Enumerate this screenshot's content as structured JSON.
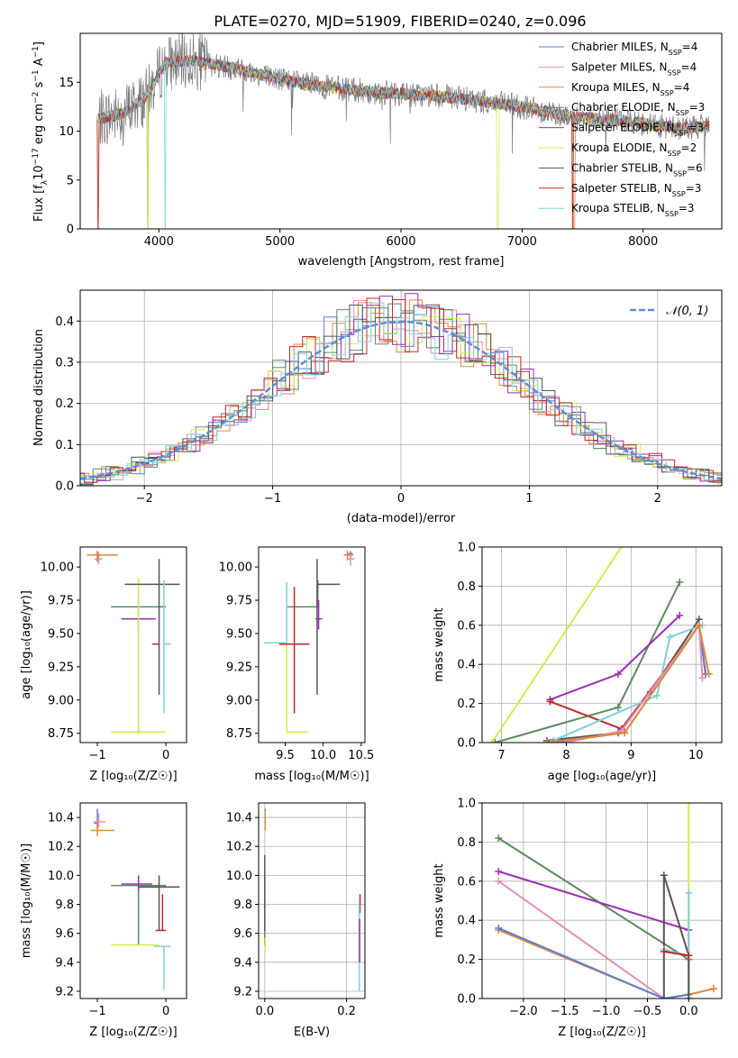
{
  "colors": {
    "Chabrier MILES": "#5b7fd1",
    "Salpeter MILES": "#e58fb8",
    "Kroupa MILES": "#e0893a",
    "Chabrier ELODIE": "#5c8a5e",
    "Salpeter ELODIE": "#9b2fb0",
    "Kroupa ELODIE": "#d4ec4c",
    "Chabrier STELIB": "#555555",
    "Salpeter STELIB": "#c0282b",
    "Kroupa STELIB": "#7fd0d8"
  },
  "chart_data": [
    {
      "type": "line",
      "title": "PLATE=0270, MJD=51909, FIBERID=0240, z=0.096",
      "xlabel": "wavelength [Angstrom, rest frame]",
      "ylabel": "Flux [fλ10⁻¹⁷ erg cm⁻² s⁻¹ A⁻¹]",
      "xlim": [
        3350,
        8650
      ],
      "ylim": [
        0,
        20
      ],
      "xticks": [
        4000,
        5000,
        6000,
        7000,
        8000
      ],
      "yticks": [
        0,
        5,
        10,
        15
      ],
      "legend_placement": "top-right",
      "spectrum_anchors": [
        [
          3500,
          11.2
        ],
        [
          3700,
          11.8
        ],
        [
          3900,
          13.5
        ],
        [
          4050,
          17.0
        ],
        [
          4300,
          17.2
        ],
        [
          4600,
          16.5
        ],
        [
          4860,
          15.7
        ],
        [
          5200,
          14.8
        ],
        [
          5600,
          14.2
        ],
        [
          6000,
          13.8
        ],
        [
          6300,
          13.6
        ],
        [
          6700,
          13.0
        ],
        [
          7000,
          12.5
        ],
        [
          7400,
          11.5
        ],
        [
          7700,
          11.2
        ],
        [
          8000,
          10.8
        ],
        [
          8300,
          10.3
        ],
        [
          8550,
          10.5
        ]
      ],
      "series": [
        {
          "name": "Chabrier MILES, N_SSP=4",
          "legend": "Chabrier MILES, N",
          "nssp": 4
        },
        {
          "name": "Salpeter MILES, N_SSP=4",
          "legend": "Salpeter MILES, N",
          "nssp": 4
        },
        {
          "name": "Kroupa MILES, N_SSP=4",
          "legend": "Kroupa MILES, N",
          "nssp": 4
        },
        {
          "name": "Chabrier ELODIE, N_SSP=3",
          "legend": "Chabrier ELODIE, N",
          "nssp": 3
        },
        {
          "name": "Salpeter ELODIE, N_SSP=3",
          "legend": "Salpeter ELODIE, N",
          "nssp": 3
        },
        {
          "name": "Kroupa ELODIE, N_SSP=2",
          "legend": "Kroupa ELODIE, N",
          "nssp": 2
        },
        {
          "name": "Chabrier STELIB, N_SSP=6",
          "legend": "Chabrier STELIB, N",
          "nssp": 6
        },
        {
          "name": "Salpeter STELIB, N_SSP=3",
          "legend": "Salpeter STELIB, N",
          "nssp": 3
        },
        {
          "name": "Kroupa STELIB, N_SSP=3",
          "legend": "Kroupa STELIB, N",
          "nssp": 3
        }
      ]
    },
    {
      "type": "line",
      "xlabel": "(data-model)/error",
      "ylabel": "Normed distribution",
      "xlim": [
        -2.5,
        2.5
      ],
      "ylim": [
        0,
        0.475
      ],
      "xticks": [
        -2,
        -1,
        0,
        1,
        2
      ],
      "yticks": [
        0.0,
        0.1,
        0.2,
        0.3,
        0.4
      ],
      "legend_label": "𝒩(0, 1)",
      "legend_placement": "top-right",
      "reference_curve": "normal pdf mean 0 std 1, dashed",
      "grid": true
    },
    {
      "type": "scatter",
      "xlabel": "Z [log₁₀(Z/Z☉)]",
      "ylabel": "age  [log₁₀(age/yr)]",
      "xlim": [
        -1.25,
        0.3
      ],
      "ylim": [
        8.68,
        10.15
      ],
      "xticks": [
        -1,
        0
      ],
      "yticks": [
        8.75,
        9.0,
        9.25,
        9.5,
        9.75,
        10.0
      ],
      "points": [
        {
          "model": "Chabrier MILES",
          "x": -1.0,
          "y": 10.09,
          "xerr": [
            0.05,
            0.05
          ],
          "yerr": [
            0.05,
            0.03
          ]
        },
        {
          "model": "Salpeter MILES",
          "x": -0.98,
          "y": 10.06,
          "xerr": [
            0.06,
            0.05
          ],
          "yerr": [
            0.04,
            0.05
          ]
        },
        {
          "model": "Kroupa MILES",
          "x": -1.0,
          "y": 10.09,
          "xerr": [
            0.15,
            0.3
          ],
          "yerr": [
            0.05,
            0.03
          ]
        },
        {
          "model": "Chabrier ELODIE",
          "x": -0.4,
          "y": 9.7,
          "xerr": [
            0.4,
            0.4
          ],
          "yerr": [
            0.95,
            0.22
          ]
        },
        {
          "model": "Salpeter ELODIE",
          "x": -0.4,
          "y": 9.61,
          "xerr": [
            0.25,
            0.25
          ],
          "yerr": [
            0.1,
            0.14
          ]
        },
        {
          "model": "Kroupa ELODIE",
          "x": -0.4,
          "y": 8.76,
          "xerr": [
            0.4,
            0.4
          ],
          "yerr": [
            0.0,
            1.16
          ]
        },
        {
          "model": "Chabrier STELIB",
          "x": -0.1,
          "y": 9.87,
          "xerr": [
            0.5,
            0.3
          ],
          "yerr": [
            0.83,
            0.19
          ]
        },
        {
          "model": "Salpeter STELIB",
          "x": -0.1,
          "y": 9.42,
          "xerr": [
            0.1,
            0.0
          ],
          "yerr": [
            0.0,
            0.0
          ]
        },
        {
          "model": "Kroupa STELIB",
          "x": -0.03,
          "y": 9.42,
          "xerr": [
            0.0,
            0.1
          ],
          "yerr": [
            0.52,
            0.48
          ]
        }
      ]
    },
    {
      "type": "scatter",
      "xlabel": "mass [log₁₀(M/M☉)]",
      "xlim": [
        9.15,
        10.55
      ],
      "ylim": [
        8.68,
        10.15
      ],
      "xticks": [
        9.5,
        10.0,
        10.5
      ],
      "yticks": [
        8.75,
        9.0,
        9.25,
        9.5,
        9.75,
        10.0
      ],
      "points": [
        {
          "model": "Chabrier MILES",
          "x": 10.36,
          "y": 10.1,
          "xerr": [
            0.05,
            0.03
          ],
          "yerr": [
            0.05,
            0.02
          ]
        },
        {
          "model": "Salpeter MILES",
          "x": 10.36,
          "y": 10.06,
          "xerr": [
            0.04,
            0.05
          ],
          "yerr": [
            0.05,
            0.04
          ]
        },
        {
          "model": "Kroupa MILES",
          "x": 10.32,
          "y": 10.09,
          "xerr": [
            0.05,
            0.08
          ],
          "yerr": [
            0.04,
            0.03
          ]
        },
        {
          "model": "Chabrier ELODIE",
          "x": 9.93,
          "y": 9.7,
          "xerr": [
            0.41,
            0.0
          ],
          "yerr": [
            0.0,
            0.2
          ]
        },
        {
          "model": "Salpeter ELODIE",
          "x": 9.94,
          "y": 9.61,
          "xerr": [
            0.04,
            0.05
          ],
          "yerr": [
            0.08,
            0.14
          ]
        },
        {
          "model": "Kroupa ELODIE",
          "x": 9.52,
          "y": 8.76,
          "xerr": [
            0.0,
            0.28
          ],
          "yerr": [
            0.0,
            1.13
          ]
        },
        {
          "model": "Chabrier STELIB",
          "x": 9.92,
          "y": 9.87,
          "xerr": [
            0.0,
            0.3
          ],
          "yerr": [
            0.83,
            0.19
          ]
        },
        {
          "model": "Salpeter STELIB",
          "x": 9.62,
          "y": 9.42,
          "xerr": [
            0.2,
            0.2
          ],
          "yerr": [
            0.52,
            0.43
          ]
        },
        {
          "model": "Kroupa STELIB",
          "x": 9.52,
          "y": 9.43,
          "xerr": [
            0.3,
            0.0
          ],
          "yerr": [
            0.0,
            0.45
          ]
        }
      ]
    },
    {
      "type": "line",
      "xlabel": "age  [log₁₀(age/yr)]",
      "ylabel": "mass weight",
      "xlim": [
        6.7,
        10.4
      ],
      "ylim": [
        0,
        1.0
      ],
      "xticks": [
        7,
        8,
        9,
        10
      ],
      "yticks": [
        0.0,
        0.2,
        0.4,
        0.6,
        0.8,
        1.0
      ],
      "grid": true,
      "series": [
        {
          "model": "Kroupa ELODIE",
          "x": [
            6.85,
            8.95
          ],
          "y": [
            0.0,
            1.05
          ]
        },
        {
          "model": "Chabrier ELODIE",
          "x": [
            6.9,
            8.8,
            9.75
          ],
          "y": [
            0.0,
            0.18,
            0.82
          ]
        },
        {
          "model": "Salpeter ELODIE",
          "x": [
            7.75,
            8.8,
            9.75
          ],
          "y": [
            0.22,
            0.35,
            0.65
          ]
        },
        {
          "model": "Chabrier STELIB",
          "x": [
            7.7,
            8.8,
            9.3,
            10.05
          ],
          "y": [
            0.01,
            0.05,
            0.26,
            0.63
          ]
        },
        {
          "model": "Salpeter STELIB",
          "x": [
            7.75,
            8.85,
            10.05,
            10.15
          ],
          "y": [
            0.21,
            0.07,
            0.6,
            0.35
          ]
        },
        {
          "model": "Kroupa STELIB",
          "x": [
            7.8,
            9.4,
            9.6,
            10.1
          ],
          "y": [
            0.01,
            0.24,
            0.54,
            0.6
          ]
        },
        {
          "model": "Chabrier MILES",
          "x": [
            7.8,
            8.9,
            10.05,
            10.15
          ],
          "y": [
            0.0,
            0.05,
            0.6,
            0.35
          ]
        },
        {
          "model": "Salpeter MILES",
          "x": [
            8.0,
            8.85,
            10.05,
            10.1
          ],
          "y": [
            0.0,
            0.06,
            0.6,
            0.33
          ]
        },
        {
          "model": "Kroupa MILES",
          "x": [
            7.7,
            8.9,
            10.05,
            10.2
          ],
          "y": [
            0.0,
            0.05,
            0.6,
            0.35
          ]
        }
      ]
    },
    {
      "type": "scatter",
      "xlabel": "Z [log₁₀(Z/Z☉)]",
      "ylabel": "mass [log₁₀(M/M☉)]",
      "xlim": [
        -1.25,
        0.3
      ],
      "ylim": [
        9.15,
        10.5
      ],
      "xticks": [
        -1,
        0
      ],
      "yticks": [
        9.2,
        9.4,
        9.6,
        9.8,
        10.0,
        10.2,
        10.4
      ],
      "points": [
        {
          "model": "Chabrier MILES",
          "x": -1.0,
          "y": 10.36,
          "xerr": [
            0.05,
            0.0
          ],
          "yerr": [
            0.04,
            0.1
          ]
        },
        {
          "model": "Salpeter MILES",
          "x": -0.98,
          "y": 10.37,
          "xerr": [
            0.07,
            0.1
          ],
          "yerr": [
            0.04,
            0.06
          ]
        },
        {
          "model": "Kroupa MILES",
          "x": -1.0,
          "y": 10.31,
          "xerr": [
            0.1,
            0.25
          ],
          "yerr": [
            0.04,
            0.06
          ]
        },
        {
          "model": "Chabrier ELODIE",
          "x": -0.4,
          "y": 9.93,
          "xerr": [
            0.4,
            0.4
          ],
          "yerr": [
            0.41,
            0.07
          ]
        },
        {
          "model": "Salpeter ELODIE",
          "x": -0.4,
          "y": 9.94,
          "xerr": [
            0.25,
            0.2
          ],
          "yerr": [
            0.05,
            0.06
          ]
        },
        {
          "model": "Kroupa ELODIE",
          "x": -0.5,
          "y": 9.52,
          "xerr": [
            0.3,
            0.4
          ],
          "yerr": [
            0.0,
            0.0
          ]
        },
        {
          "model": "Chabrier STELIB",
          "x": -0.1,
          "y": 9.92,
          "xerr": [
            0.3,
            0.3
          ],
          "yerr": [
            0.3,
            0.08
          ]
        },
        {
          "model": "Salpeter STELIB",
          "x": -0.05,
          "y": 9.62,
          "xerr": [
            0.1,
            0.05
          ],
          "yerr": [
            0.0,
            0.25
          ]
        },
        {
          "model": "Kroupa STELIB",
          "x": -0.03,
          "y": 9.51,
          "xerr": [
            0.15,
            0.1
          ],
          "yerr": [
            0.3,
            0.0
          ]
        }
      ]
    },
    {
      "type": "scatter",
      "xlabel": "E(B-V)",
      "xlim": [
        -0.015,
        0.245
      ],
      "ylim": [
        9.15,
        10.5
      ],
      "xticks": [
        0.0,
        0.2
      ],
      "yticks": [
        9.2,
        9.4,
        9.6,
        9.8,
        10.0,
        10.2,
        10.4
      ],
      "grid": true,
      "points": [
        {
          "model": "Chabrier MILES",
          "x": 0.001,
          "y": 10.36,
          "yerr": [
            0.0,
            0.1
          ]
        },
        {
          "model": "Kroupa MILES",
          "x": 0.001,
          "y": 10.31,
          "yerr": [
            0.0,
            0.14
          ]
        },
        {
          "model": "Chabrier ELODIE",
          "x": 0.0,
          "y": 9.93,
          "yerr": [
            0.41,
            0.07
          ]
        },
        {
          "model": "Kroupa ELODIE",
          "x": 0.001,
          "y": 9.52,
          "yerr": [
            0.05,
            0.05
          ]
        },
        {
          "model": "Chabrier STELIB",
          "x": 0.0,
          "y": 9.92,
          "yerr": [
            0.3,
            0.22
          ]
        },
        {
          "model": "Salpeter STELIB",
          "x": 0.233,
          "y": 9.82,
          "yerr": [
            0.08,
            0.05
          ]
        },
        {
          "model": "Kroupa STELIB",
          "x": 0.231,
          "y": 9.5,
          "yerr": [
            0.3,
            0.3
          ]
        },
        {
          "model": "Salpeter ELODIE",
          "x": 0.232,
          "y": 9.55,
          "yerr": [
            0.15,
            0.15
          ]
        }
      ]
    },
    {
      "type": "line",
      "xlabel": "Z [log₁₀(Z/Z☉)]",
      "ylabel": "mass weight",
      "xlim": [
        -2.5,
        0.4
      ],
      "ylim": [
        0,
        1.0
      ],
      "xticks": [
        -2.0,
        -1.5,
        -1.0,
        -0.5,
        0.0
      ],
      "yticks": [
        0.0,
        0.2,
        0.4,
        0.6,
        0.8,
        1.0
      ],
      "grid": true,
      "series": [
        {
          "model": "Chabrier ELODIE",
          "x": [
            -2.3,
            0.0,
            0.0
          ],
          "y": [
            0.82,
            0.2,
            0.0
          ]
        },
        {
          "model": "Salpeter ELODIE",
          "x": [
            -2.3,
            0.0,
            0.0
          ],
          "y": [
            0.65,
            0.35,
            0.22
          ]
        },
        {
          "model": "Kroupa ELODIE",
          "x": [
            0.0,
            0.0
          ],
          "y": [
            0.0,
            1.05
          ]
        },
        {
          "model": "Salpeter MILES",
          "x": [
            -2.3,
            -0.3,
            0.0,
            0.3
          ],
          "y": [
            0.6,
            0.0,
            0.02,
            0.05
          ]
        },
        {
          "model": "Kroupa MILES",
          "x": [
            -2.3,
            -0.3,
            0.0,
            0.3
          ],
          "y": [
            0.35,
            0.0,
            0.02,
            0.05
          ]
        },
        {
          "model": "Chabrier MILES",
          "x": [
            -2.3,
            -0.3,
            0.0
          ],
          "y": [
            0.36,
            0.0,
            0.02
          ]
        },
        {
          "model": "Chabrier STELIB",
          "x": [
            -0.3,
            -0.3,
            0.0,
            0.0
          ],
          "y": [
            0.0,
            0.63,
            0.22,
            0.0
          ]
        },
        {
          "model": "Kroupa STELIB",
          "x": [
            -0.3,
            0.0,
            0.0
          ],
          "y": [
            0.25,
            0.22,
            0.54
          ]
        },
        {
          "model": "Salpeter STELIB",
          "x": [
            -0.3,
            0.0
          ],
          "y": [
            0.24,
            0.22
          ]
        }
      ]
    }
  ]
}
